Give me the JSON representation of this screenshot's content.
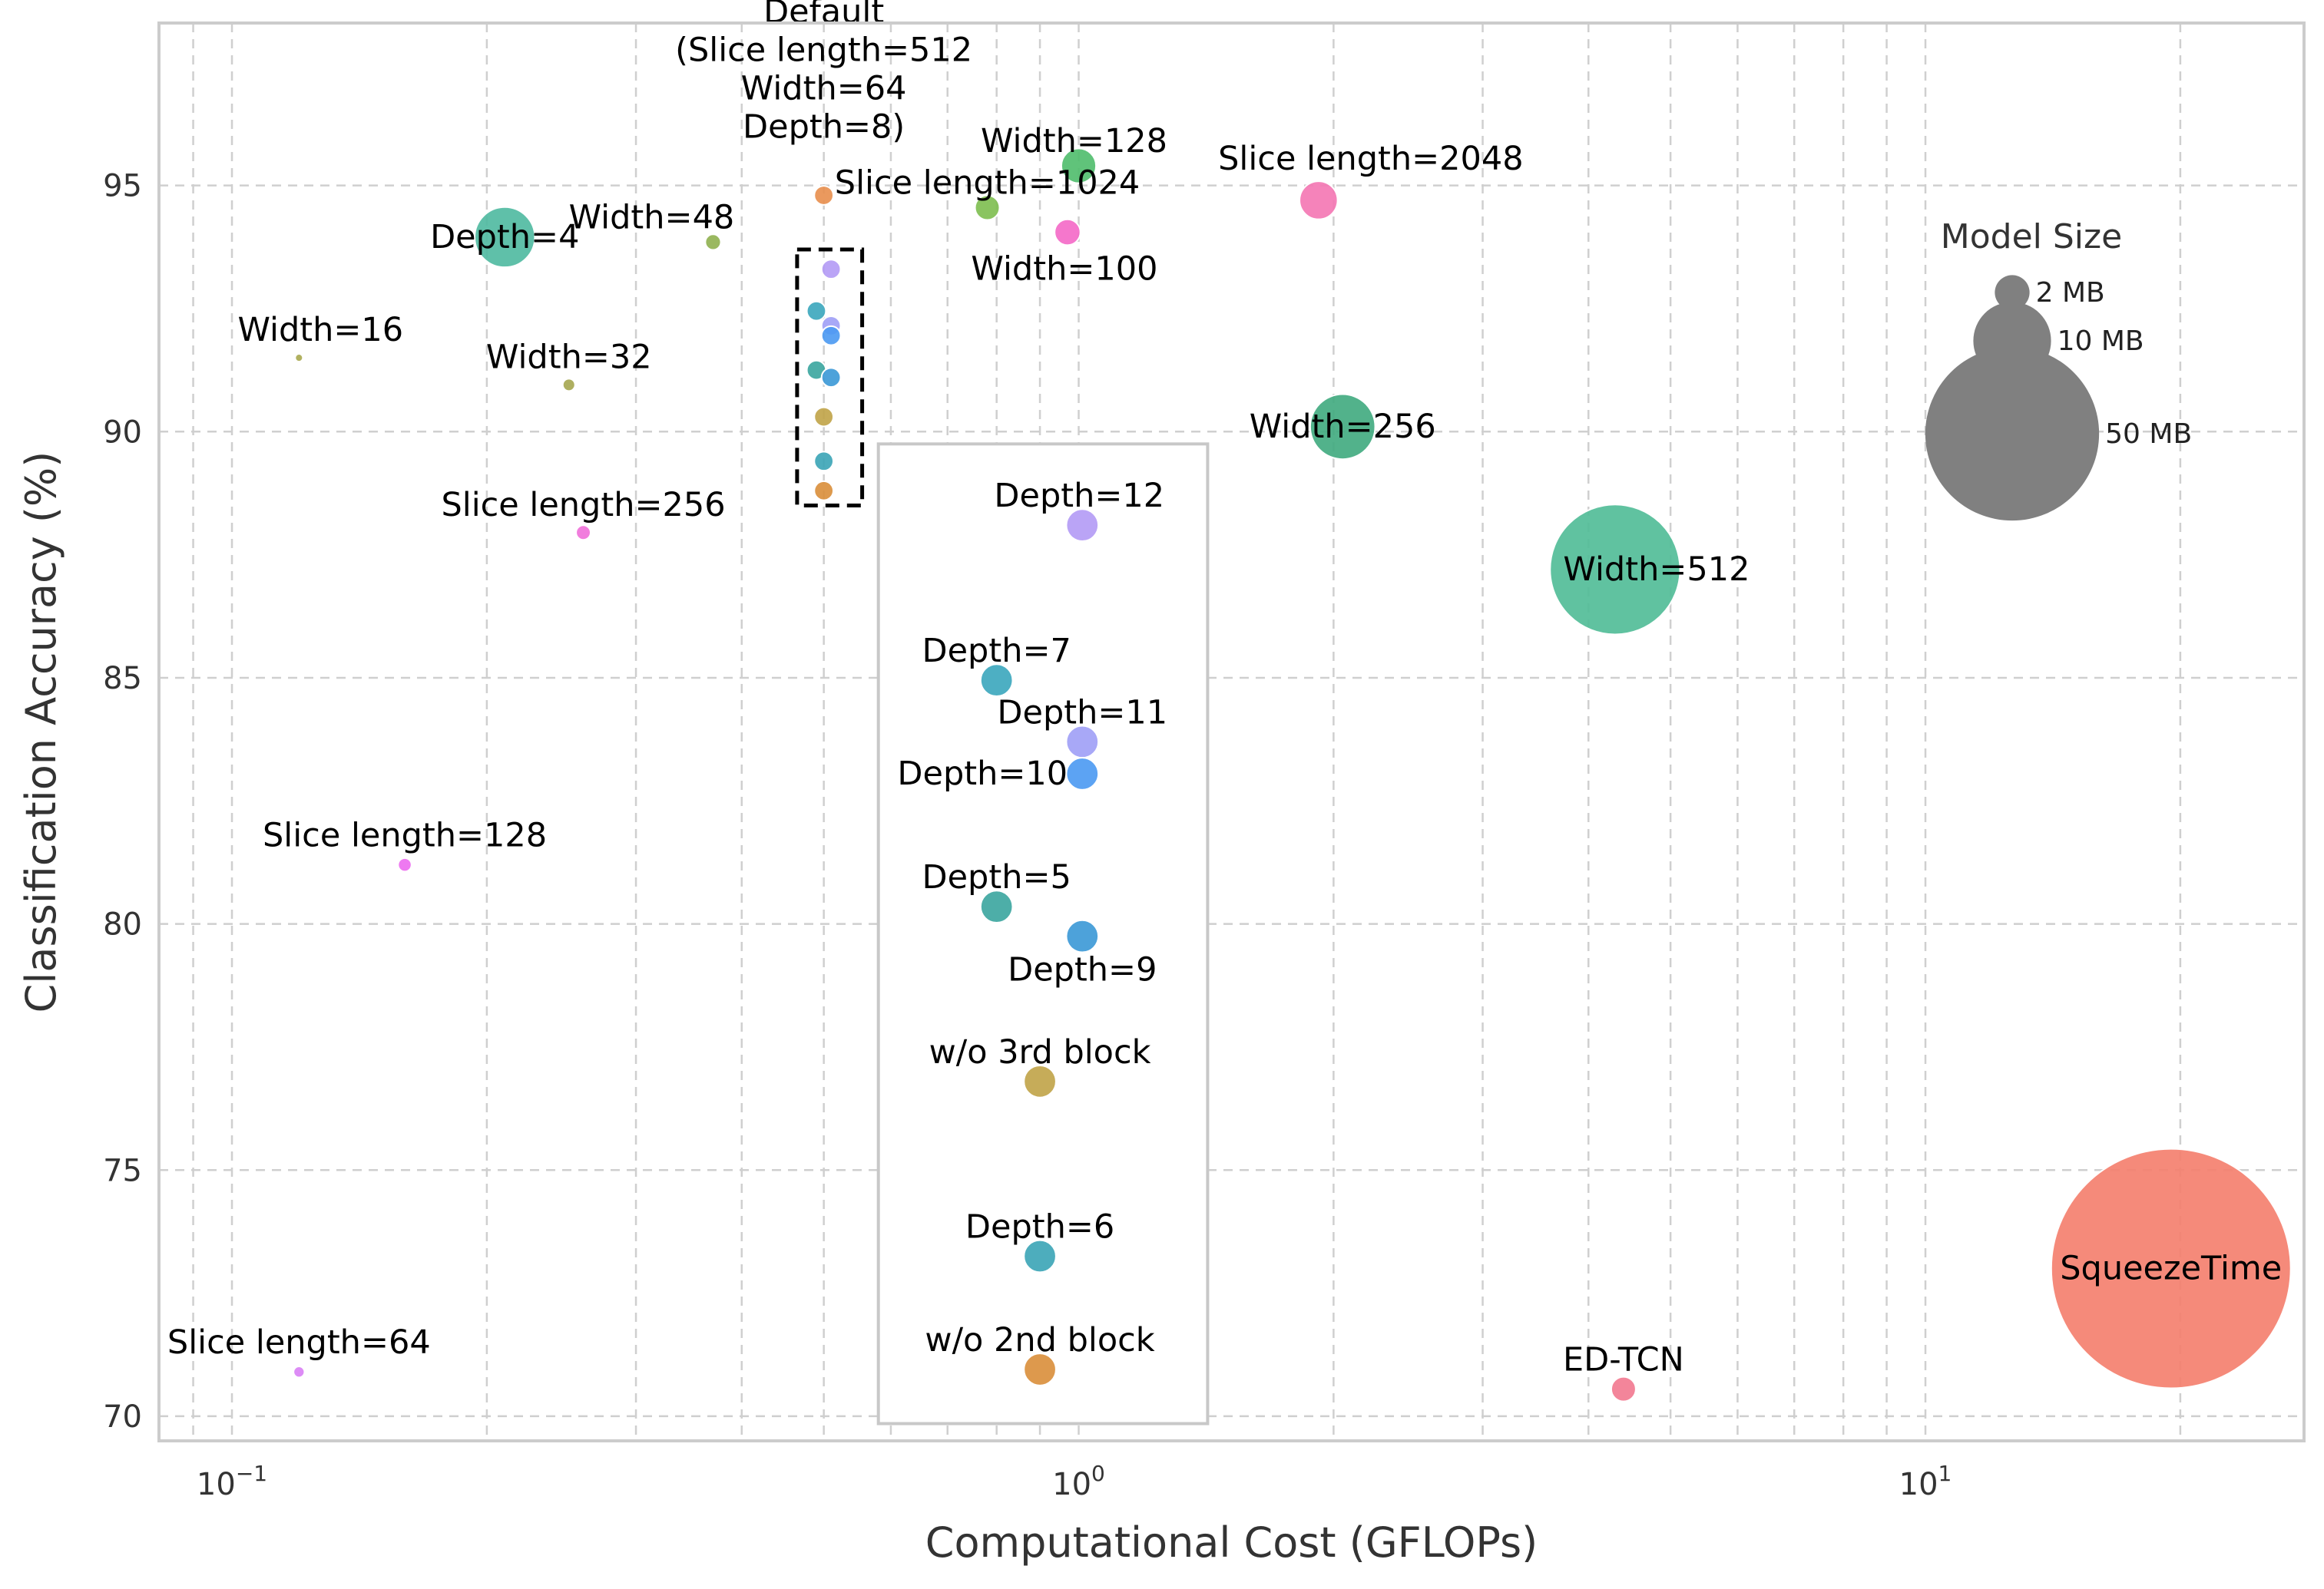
{
  "chart_data": {
    "type": "scatter",
    "xlabel": "Computational Cost (GFLOPs)",
    "ylabel": "Classification Accuracy (%)",
    "x_scale": "log",
    "xlim": [
      0.082,
      28
    ],
    "ylim": [
      69.5,
      98.3
    ],
    "x_ticks": [
      0.1,
      1,
      10
    ],
    "x_tick_labels": [
      "10",
      "10",
      "10"
    ],
    "x_tick_exponents": [
      "−1",
      "0",
      "1"
    ],
    "y_ticks": [
      70,
      75,
      80,
      85,
      90,
      95
    ],
    "y_tick_labels": [
      "70",
      "75",
      "80",
      "85",
      "90",
      "95"
    ],
    "grid": true,
    "legend": {
      "title": "Model Size",
      "placement": "right",
      "entries": [
        {
          "label": "2 MB",
          "size_mb": 2
        },
        {
          "label": "10 MB",
          "size_mb": 10
        },
        {
          "label": "50 MB",
          "size_mb": 50
        }
      ],
      "color": "#808080"
    },
    "points": [
      {
        "label": "Default\n(Slice length=512\nWidth=64\nDepth=8)",
        "x": 0.5,
        "y": 94.8,
        "size_mb": 0.6,
        "color": "#e88e4d",
        "label_color": "#e8762f"
      },
      {
        "label": "Width=128",
        "x": 1.0,
        "y": 95.4,
        "size_mb": 2.0,
        "color": "#4fbd6b",
        "label_color": "#000000"
      },
      {
        "label": "Slice length=1024",
        "x": 0.78,
        "y": 94.55,
        "size_mb": 1.0,
        "color": "#7dbe4f",
        "label_color": "#000000"
      },
      {
        "label": "Slice length=2048",
        "x": 1.92,
        "y": 94.7,
        "size_mb": 2.4,
        "color": "#f476b3",
        "label_color": "#000000"
      },
      {
        "label": "Width=100",
        "x": 0.97,
        "y": 94.05,
        "size_mb": 1.1,
        "color": "#f468c6",
        "label_color": "#000000"
      },
      {
        "label": "Depth=4",
        "x": 0.21,
        "y": 93.95,
        "size_mb": 6.0,
        "color": "#4eb9a0",
        "label_color": "#000000"
      },
      {
        "label": "Width=48",
        "x": 0.37,
        "y": 93.85,
        "size_mb": 0.4,
        "color": "#8fb04f",
        "label_color": "#000000"
      },
      {
        "label": "Width=16",
        "x": 0.12,
        "y": 91.5,
        "size_mb": 0.1,
        "color": "#a9a84f",
        "label_color": "#000000"
      },
      {
        "label": "Width=32",
        "x": 0.25,
        "y": 90.95,
        "size_mb": 0.25,
        "color": "#a5a64f",
        "label_color": "#000000"
      },
      {
        "label": "Width=256",
        "x": 2.05,
        "y": 90.1,
        "size_mb": 7.0,
        "color": "#3faa7e",
        "label_color": "#000000"
      },
      {
        "label": "Slice length=256",
        "x": 0.26,
        "y": 87.95,
        "size_mb": 0.35,
        "color": "#f06fd9",
        "label_color": "#000000"
      },
      {
        "label": "Width=512",
        "x": 4.3,
        "y": 87.2,
        "size_mb": 28.0,
        "color": "#4fbb96",
        "label_color": "#000000"
      },
      {
        "label": "Depth=12",
        "x": 1.01,
        "y": 88.1,
        "size_mb": 1.7,
        "color": "#b29af5",
        "label_color": "#000000"
      },
      {
        "label": "Depth=7",
        "x": 0.8,
        "y": 84.95,
        "size_mb": 1.7,
        "color": "#3aa6bd",
        "label_color": "#000000"
      },
      {
        "label": "Depth=11",
        "x": 1.01,
        "y": 83.7,
        "size_mb": 1.7,
        "color": "#9e9ff6",
        "label_color": "#000000"
      },
      {
        "label": "Depth=10",
        "x": 1.01,
        "y": 83.05,
        "size_mb": 1.7,
        "color": "#4a99f2",
        "label_color": "#000000"
      },
      {
        "label": "Slice length=128",
        "x": 0.16,
        "y": 81.2,
        "size_mb": 0.3,
        "color": "#ec6af0",
        "label_color": "#000000"
      },
      {
        "label": "Depth=5",
        "x": 0.8,
        "y": 80.35,
        "size_mb": 1.7,
        "color": "#3aa59e",
        "label_color": "#000000"
      },
      {
        "label": "Depth=9",
        "x": 1.01,
        "y": 79.75,
        "size_mb": 1.7,
        "color": "#3a98d6",
        "label_color": "#000000"
      },
      {
        "label": "w/o 3rd block",
        "x": 0.9,
        "y": 76.8,
        "size_mb": 1.7,
        "color": "#c0a347",
        "label_color": "#000000"
      },
      {
        "label": "Depth=6",
        "x": 0.9,
        "y": 73.25,
        "size_mb": 1.7,
        "color": "#3aa4b6",
        "label_color": "#000000"
      },
      {
        "label": "w/o 2nd block",
        "x": 0.9,
        "y": 70.95,
        "size_mb": 1.7,
        "color": "#d98e3a",
        "label_color": "#000000"
      },
      {
        "label": "Slice length=64",
        "x": 0.12,
        "y": 70.9,
        "size_mb": 0.2,
        "color": "#d97ff5",
        "label_color": "#000000"
      },
      {
        "label": "ED-TCN",
        "x": 4.4,
        "y": 70.55,
        "size_mb": 1.0,
        "color": "#f2788f",
        "label_color": "#000000"
      },
      {
        "label": "SqueezeTime",
        "x": 19.5,
        "y": 73.0,
        "size_mb": 95.0,
        "color": "#f47d6b",
        "label_color": "#000000"
      }
    ],
    "cluster_points": [
      {
        "x": 0.51,
        "y": 93.3,
        "size_mb": 0.6,
        "color": "#b29af5"
      },
      {
        "x": 0.49,
        "y": 92.45,
        "size_mb": 0.6,
        "color": "#3aa6bd"
      },
      {
        "x": 0.51,
        "y": 92.15,
        "size_mb": 0.6,
        "color": "#9e9ff6"
      },
      {
        "x": 0.51,
        "y": 91.95,
        "size_mb": 0.6,
        "color": "#4a99f2"
      },
      {
        "x": 0.49,
        "y": 91.25,
        "size_mb": 0.6,
        "color": "#3aa59e"
      },
      {
        "x": 0.51,
        "y": 91.1,
        "size_mb": 0.6,
        "color": "#3a98d6"
      },
      {
        "x": 0.5,
        "y": 90.3,
        "size_mb": 0.6,
        "color": "#c0a347"
      },
      {
        "x": 0.5,
        "y": 89.4,
        "size_mb": 0.6,
        "color": "#3aa4b6"
      },
      {
        "x": 0.5,
        "y": 88.8,
        "size_mb": 0.6,
        "color": "#d98e3a"
      }
    ],
    "annotations": {
      "dashed_box": {
        "x_range": [
          0.465,
          0.555
        ],
        "y_range": [
          88.5,
          93.7
        ]
      },
      "inset_box": {
        "x_range": [
          0.58,
          1.42
        ],
        "y_range": [
          69.85,
          89.75
        ]
      }
    }
  }
}
